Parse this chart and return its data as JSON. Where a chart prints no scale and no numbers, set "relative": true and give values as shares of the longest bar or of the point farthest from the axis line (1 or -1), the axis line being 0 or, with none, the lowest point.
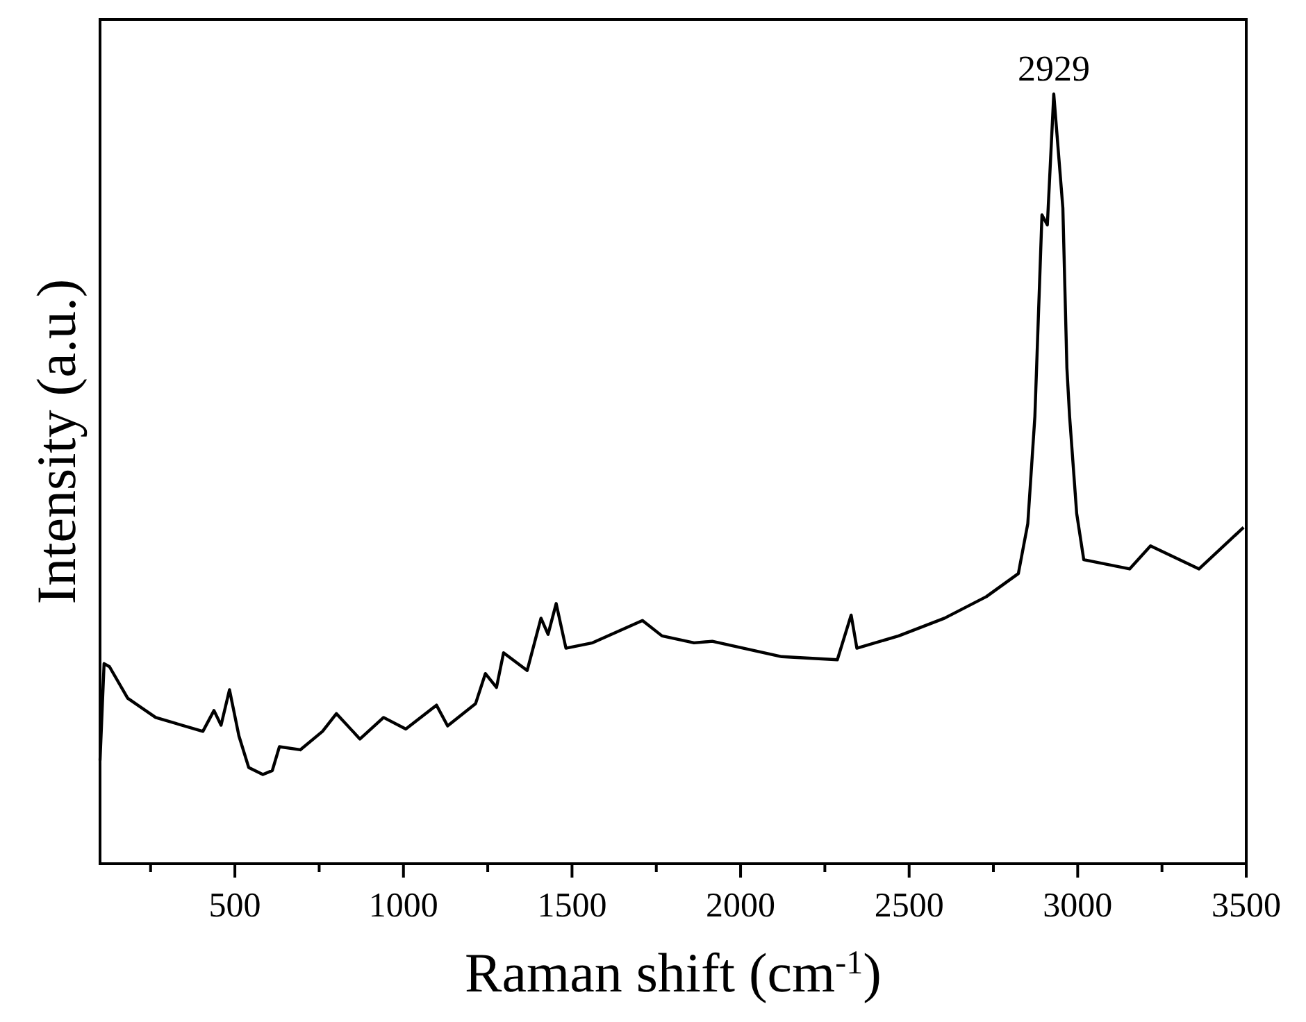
{
  "chart_data": {
    "type": "line",
    "relative": true,
    "xlabel": "Raman shift (cm$^{-1}$)",
    "ylabel": "Intensity (a.u.)",
    "xlim": [
      100,
      3500
    ],
    "xticks": [
      {
        "value": 250,
        "label": null
      },
      500,
      {
        "value": 750,
        "label": null
      },
      1000,
      {
        "value": 1250,
        "label": null
      },
      1500,
      {
        "value": 1750,
        "label": null
      },
      2000,
      {
        "value": 2250,
        "label": null
      },
      2500,
      {
        "value": 2750,
        "label": null
      },
      3000,
      {
        "value": 3250,
        "label": null
      },
      3500
    ],
    "annotations": [
      {
        "text": "2929",
        "x": 2929,
        "y": 1
      }
    ],
    "series": [
      {
        "color": "#000000",
        "x": [
          100,
          112,
          128,
          182,
          265,
          405,
          438,
          459,
          484,
          512,
          541,
          583,
          611,
          632,
          694,
          760,
          801,
          871,
          941,
          1007,
          1098,
          1131,
          1214,
          1243,
          1276,
          1297,
          1367,
          1408,
          1429,
          1453,
          1482,
          1561,
          1709,
          1767,
          1862,
          1916,
          2122,
          2287,
          2328,
          2345,
          2469,
          2605,
          2729,
          2824,
          2852,
          2873,
          2894,
          2910,
          2929,
          2956,
          2968,
          2976,
          2997,
          3018,
          3154,
          3216,
          3360,
          3492
        ],
        "values": [
          0.134,
          0.26,
          0.256,
          0.215,
          0.19,
          0.172,
          0.199,
          0.18,
          0.226,
          0.166,
          0.125,
          0.116,
          0.121,
          0.152,
          0.148,
          0.172,
          0.195,
          0.162,
          0.19,
          0.175,
          0.206,
          0.179,
          0.208,
          0.247,
          0.229,
          0.274,
          0.251,
          0.319,
          0.298,
          0.338,
          0.28,
          0.287,
          0.316,
          0.296,
          0.287,
          0.289,
          0.269,
          0.265,
          0.323,
          0.28,
          0.296,
          0.319,
          0.347,
          0.377,
          0.442,
          0.581,
          0.843,
          0.83,
          1,
          0.852,
          0.644,
          0.581,
          0.455,
          0.395,
          0.383,
          0.413,
          0.383,
          0.437
        ]
      }
    ]
  }
}
